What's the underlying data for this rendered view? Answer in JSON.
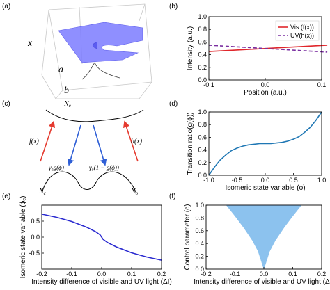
{
  "figure": {
    "panel_labels": [
      "(a)",
      "(b)",
      "(c)",
      "(d)",
      "(e)",
      "(f)"
    ],
    "panel_a": {
      "x_label": "x",
      "a_label": "a",
      "b_label": "b",
      "surface_color": "#7b7bff"
    },
    "panel_c": {
      "top_state": "N",
      "top_state_sub": "e",
      "left_state": "N",
      "left_state_sub": "c",
      "right_state": "N",
      "right_state_sub": "o",
      "f_label": "f(x)",
      "h_label": "h(x)",
      "down_left_label": "γ₀g(ϕ)",
      "down_right_label": "γ₀(1 − g(ϕ))",
      "up_color": "#e53a2f",
      "down_color": "#2f5fd6"
    }
  },
  "chart_data": [
    {
      "panel": "(b)",
      "type": "line",
      "xlabel": "Position (a.u.)",
      "ylabel": "Intensity (a.u.)",
      "xlim": [
        -0.1,
        0.1
      ],
      "ylim": [
        0,
        1.0
      ],
      "x_ticks": [
        "-0.1",
        "0.0",
        "0.1"
      ],
      "y_ticks": [
        "0.0",
        "0.2",
        "0.4",
        "0.6",
        "0.8",
        "1.0"
      ],
      "legend_position": "top-right",
      "series": [
        {
          "name": "Vis.(f(x))",
          "color": "#e0262b",
          "style": "solid",
          "x": [
            -0.1,
            0.11
          ],
          "y": [
            0.45,
            0.55
          ]
        },
        {
          "name": "UV(h(x))",
          "color": "#7a2fa0",
          "style": "dashed",
          "x": [
            -0.1,
            0.11
          ],
          "y": [
            0.55,
            0.44
          ]
        }
      ]
    },
    {
      "panel": "(d)",
      "type": "line",
      "xlabel": "Isomeric state variable (ϕ)",
      "ylabel": "Transition ratio(g(ϕ))",
      "xlim": [
        -1.0,
        1.0
      ],
      "ylim": [
        0,
        1.0
      ],
      "x_ticks": [
        "-1.0",
        "-0.5",
        "0.0",
        "0.5",
        "1.0"
      ],
      "y_ticks": [
        "0.0",
        "0.2",
        "0.4",
        "0.6",
        "0.8",
        "1.0"
      ],
      "series": [
        {
          "name": "",
          "color": "#1f77b4",
          "x": [
            -1.0,
            -0.9,
            -0.8,
            -0.7,
            -0.6,
            -0.5,
            -0.4,
            -0.3,
            -0.2,
            -0.1,
            0.0,
            0.1,
            0.2,
            0.3,
            0.4,
            0.5,
            0.6,
            0.7,
            0.8,
            0.9,
            1.0
          ],
          "y": [
            0.0,
            0.13,
            0.24,
            0.32,
            0.39,
            0.43,
            0.46,
            0.48,
            0.49,
            0.5,
            0.5,
            0.5,
            0.51,
            0.52,
            0.54,
            0.57,
            0.61,
            0.68,
            0.76,
            0.87,
            1.0
          ]
        }
      ]
    },
    {
      "panel": "(e)",
      "type": "line",
      "xlabel": "Intensity difference of visible and UV light (ΔI)",
      "ylabel": "Isomeric state variable (ϕₑ)",
      "xlim": [
        -0.2,
        0.2
      ],
      "ylim": [
        -1.0,
        1.0
      ],
      "x_ticks": [
        "-0.2",
        "-0.1",
        "0.0",
        "0.1",
        "0.2"
      ],
      "y_ticks": [
        "-0.5",
        "0.0",
        "0.5"
      ],
      "series": [
        {
          "name": "",
          "color": "#2a2ad0",
          "x": [
            -0.2,
            -0.15,
            -0.1,
            -0.05,
            -0.02,
            -0.005,
            0.0,
            0.005,
            0.02,
            0.05,
            0.1,
            0.15,
            0.2
          ],
          "y": [
            0.72,
            0.62,
            0.49,
            0.31,
            0.17,
            0.07,
            0.0,
            -0.07,
            -0.17,
            -0.31,
            -0.49,
            -0.62,
            -0.72
          ]
        }
      ]
    },
    {
      "panel": "(f)",
      "type": "area",
      "xlabel": "Intensity difference of visible and UV light (ΔI)",
      "ylabel": "Control parameter (c)",
      "xlim": [
        -0.2,
        0.2
      ],
      "ylim": [
        0,
        1.0
      ],
      "x_ticks": [
        "-0.2",
        "-0.1",
        "0.0",
        "0.1",
        "0.2"
      ],
      "y_ticks": [
        "0.0",
        "0.2",
        "0.4",
        "0.6",
        "0.8",
        "1.0"
      ],
      "fill_color": "#8cc2ee",
      "series": [
        {
          "name": "",
          "x": [
            -0.13,
            -0.1,
            -0.07,
            -0.04,
            -0.02,
            0.0,
            0.02,
            0.04,
            0.07,
            0.1,
            0.13
          ],
          "y": [
            1.0,
            0.83,
            0.65,
            0.45,
            0.28,
            0.0,
            0.28,
            0.45,
            0.65,
            0.83,
            1.0
          ]
        }
      ]
    }
  ]
}
